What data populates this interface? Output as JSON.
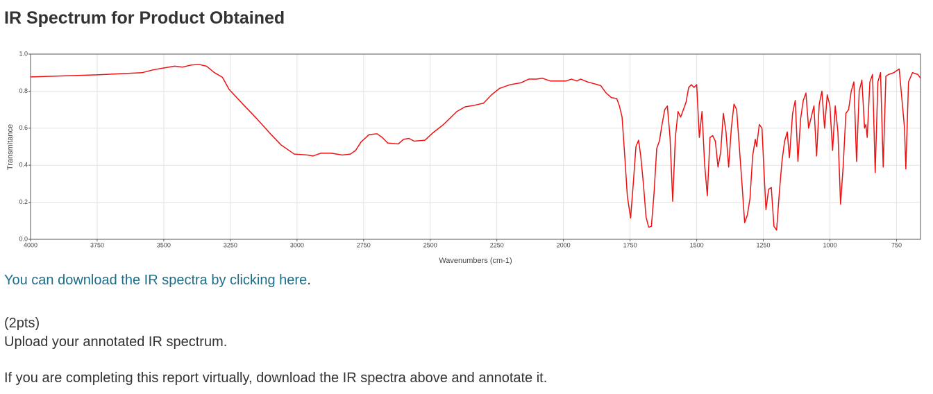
{
  "header": {
    "title": "IR Spectrum for Product Obtained"
  },
  "chart_data": {
    "type": "line",
    "xlabel": "Wavenumbers (cm-1)",
    "ylabel": "Transmitance",
    "color": "#ee1111",
    "grid": true,
    "xlim": [
      4000,
      660
    ],
    "ylim": [
      0,
      1
    ],
    "xticks": [
      4000,
      3750,
      3500,
      3250,
      3000,
      2750,
      2500,
      2250,
      2000,
      1750,
      1500,
      1250,
      1000,
      750
    ],
    "yticks": [
      {
        "value": 0,
        "label": "0.0"
      },
      0.2,
      0.4,
      0.6,
      0.8,
      {
        "value": 1,
        "label": "1.0"
      }
    ],
    "x": [
      4000,
      3750,
      3580,
      3540,
      3500,
      3460,
      3430,
      3400,
      3370,
      3340,
      3310,
      3280,
      3255,
      3200,
      3150,
      3100,
      3060,
      3010,
      2960,
      2940,
      2910,
      2870,
      2830,
      2800,
      2780,
      2760,
      2730,
      2700,
      2680,
      2660,
      2620,
      2600,
      2580,
      2560,
      2520,
      2490,
      2450,
      2400,
      2370,
      2330,
      2300,
      2270,
      2240,
      2200,
      2160,
      2130,
      2100,
      2080,
      2050,
      1990,
      1970,
      1950,
      1935,
      1910,
      1860,
      1840,
      1820,
      1800,
      1790,
      1780,
      1770,
      1760,
      1748,
      1738,
      1728,
      1718,
      1710,
      1700,
      1690,
      1680,
      1670,
      1660,
      1650,
      1640,
      1630,
      1620,
      1610,
      1600,
      1590,
      1580,
      1570,
      1560,
      1550,
      1540,
      1530,
      1520,
      1510,
      1500,
      1490,
      1480,
      1470,
      1460,
      1450,
      1440,
      1430,
      1420,
      1410,
      1400,
      1390,
      1380,
      1370,
      1360,
      1350,
      1340,
      1330,
      1320,
      1310,
      1300,
      1290,
      1280,
      1275,
      1265,
      1255,
      1245,
      1240,
      1230,
      1220,
      1210,
      1200,
      1190,
      1180,
      1170,
      1160,
      1152,
      1140,
      1130,
      1120,
      1110,
      1100,
      1090,
      1080,
      1070,
      1060,
      1050,
      1040,
      1030,
      1020,
      1010,
      1000,
      990,
      980,
      970,
      960,
      950,
      940,
      930,
      920,
      910,
      900,
      890,
      880,
      870,
      865,
      860,
      850,
      840,
      830,
      820,
      810,
      800,
      790,
      780,
      760,
      740,
      720,
      715,
      705,
      690,
      670,
      660
    ],
    "values": [
      0.877,
      0.888,
      0.9,
      0.915,
      0.925,
      0.935,
      0.93,
      0.94,
      0.945,
      0.935,
      0.9,
      0.875,
      0.81,
      0.725,
      0.65,
      0.57,
      0.51,
      0.46,
      0.455,
      0.45,
      0.465,
      0.465,
      0.455,
      0.46,
      0.48,
      0.525,
      0.565,
      0.57,
      0.55,
      0.52,
      0.515,
      0.54,
      0.545,
      0.53,
      0.535,
      0.575,
      0.62,
      0.69,
      0.715,
      0.725,
      0.735,
      0.78,
      0.815,
      0.835,
      0.845,
      0.865,
      0.865,
      0.87,
      0.855,
      0.855,
      0.865,
      0.855,
      0.865,
      0.85,
      0.83,
      0.79,
      0.765,
      0.76,
      0.72,
      0.66,
      0.45,
      0.23,
      0.115,
      0.3,
      0.5,
      0.535,
      0.45,
      0.3,
      0.12,
      0.065,
      0.07,
      0.25,
      0.49,
      0.53,
      0.62,
      0.7,
      0.72,
      0.55,
      0.205,
      0.55,
      0.69,
      0.66,
      0.7,
      0.74,
      0.82,
      0.835,
      0.82,
      0.835,
      0.55,
      0.69,
      0.4,
      0.235,
      0.55,
      0.56,
      0.53,
      0.39,
      0.47,
      0.68,
      0.58,
      0.39,
      0.6,
      0.73,
      0.7,
      0.5,
      0.3,
      0.09,
      0.13,
      0.22,
      0.45,
      0.54,
      0.5,
      0.62,
      0.6,
      0.3,
      0.16,
      0.27,
      0.28,
      0.07,
      0.05,
      0.25,
      0.42,
      0.53,
      0.58,
      0.44,
      0.68,
      0.75,
      0.42,
      0.65,
      0.75,
      0.79,
      0.6,
      0.66,
      0.72,
      0.45,
      0.73,
      0.8,
      0.6,
      0.78,
      0.72,
      0.48,
      0.72,
      0.58,
      0.19,
      0.4,
      0.68,
      0.7,
      0.8,
      0.85,
      0.42,
      0.8,
      0.86,
      0.6,
      0.62,
      0.55,
      0.85,
      0.89,
      0.36,
      0.85,
      0.9,
      0.39,
      0.88,
      0.89,
      0.9,
      0.92,
      0.6,
      0.38,
      0.85,
      0.9,
      0.89,
      0.87
    ]
  },
  "link": {
    "text": "You can download the IR spectra by clicking here",
    "suffix": "."
  },
  "points": "(2pts)",
  "instruction": "Upload your annotated IR spectrum.",
  "note": "If you are completing this report virtually, download the IR spectra above and annotate it."
}
